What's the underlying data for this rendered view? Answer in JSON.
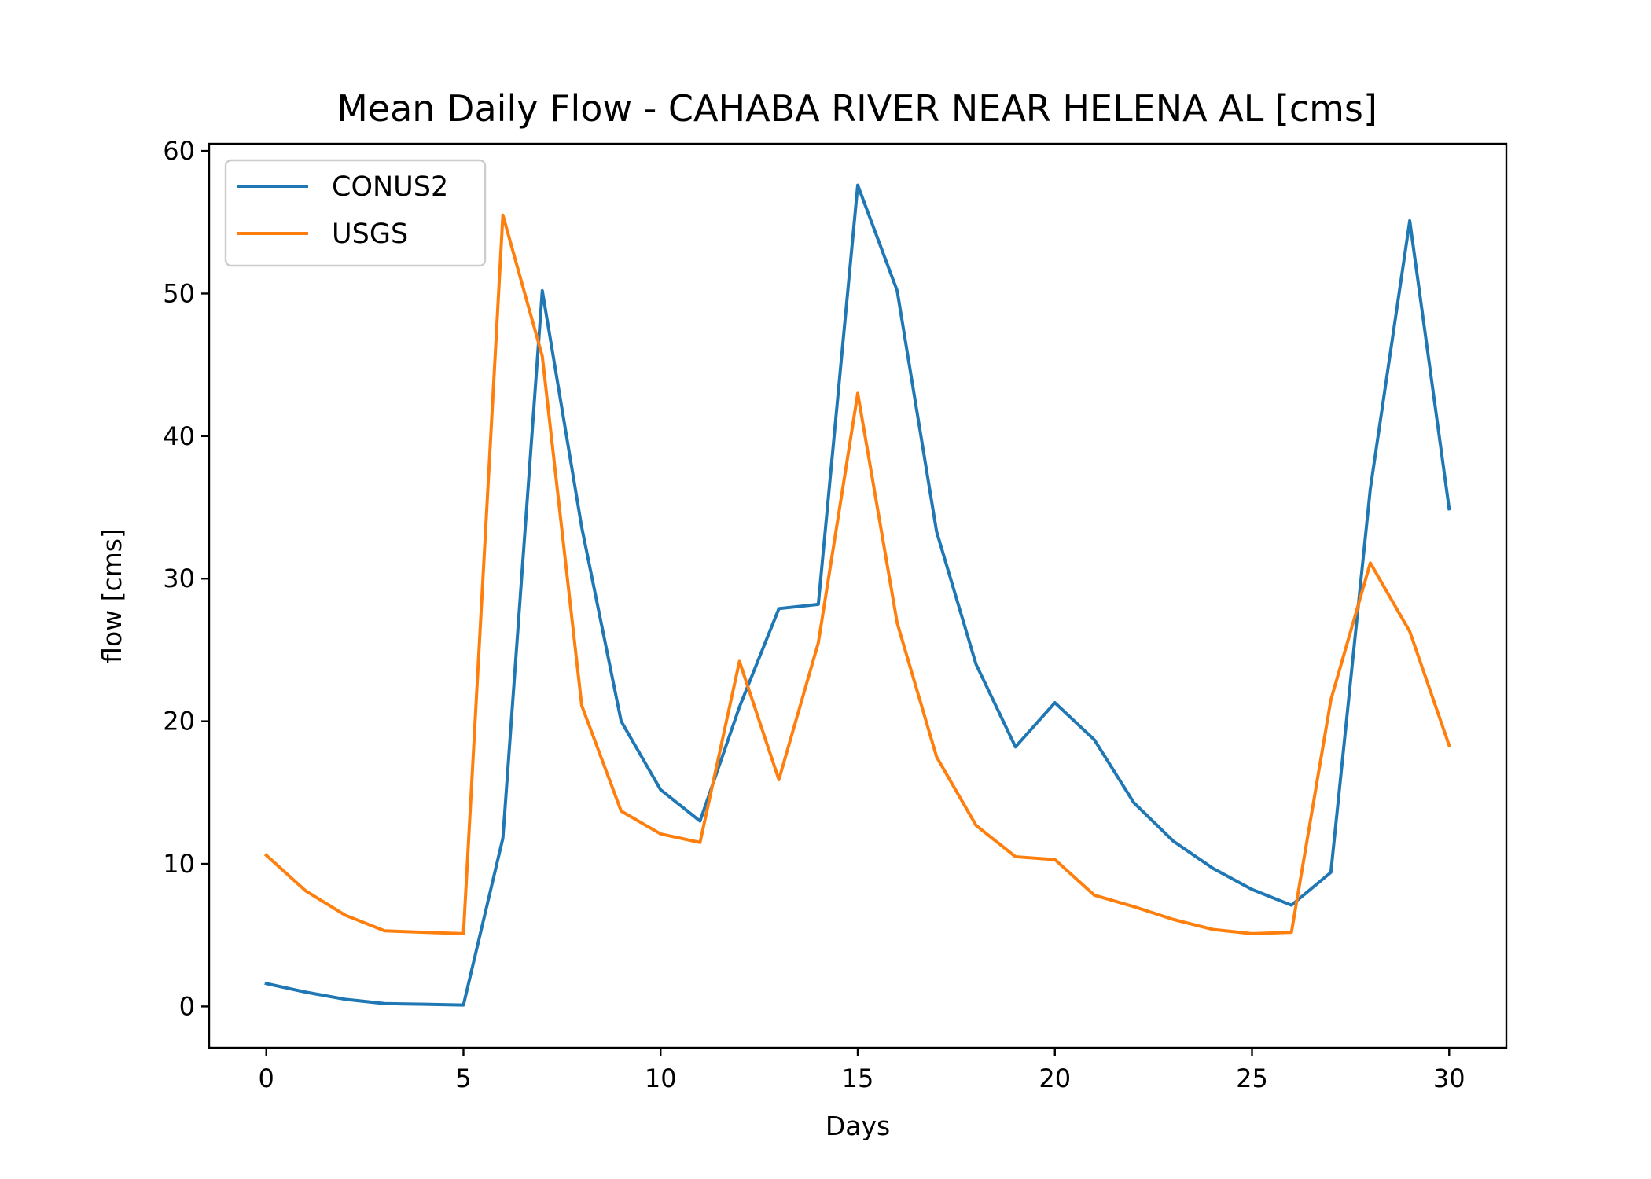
{
  "chart_data": {
    "type": "line",
    "title": "Mean Daily Flow - CAHABA RIVER NEAR HELENA AL [cms]",
    "xlabel": "Days",
    "ylabel": "flow [cms]",
    "xlim": [
      -1.45,
      31.45
    ],
    "ylim": [
      -2.9,
      60.5
    ],
    "xticks": [
      0,
      5,
      10,
      15,
      20,
      25,
      30
    ],
    "yticks": [
      0,
      10,
      20,
      30,
      40,
      50,
      60
    ],
    "grid": false,
    "legend_position": "top-left",
    "x": [
      0,
      1,
      2,
      3,
      4,
      5,
      6,
      7,
      8,
      9,
      10,
      11,
      12,
      13,
      14,
      15,
      16,
      17,
      18,
      19,
      20,
      21,
      22,
      23,
      24,
      25,
      26,
      27,
      28,
      29,
      30
    ],
    "series": [
      {
        "name": "CONUS2",
        "color": "#1f77b4",
        "values": [
          1.6,
          1.0,
          0.5,
          0.2,
          0.15,
          0.1,
          11.8,
          50.2,
          33.6,
          20.0,
          15.2,
          13.0,
          21.0,
          27.9,
          28.2,
          57.6,
          50.2,
          33.3,
          24.0,
          18.2,
          21.3,
          18.7,
          14.3,
          11.6,
          9.7,
          8.2,
          7.1,
          9.4,
          36.3,
          55.1,
          34.9
        ]
      },
      {
        "name": "USGS",
        "color": "#ff7f0e",
        "values": [
          10.6,
          8.1,
          6.4,
          5.3,
          5.2,
          5.1,
          55.5,
          45.6,
          21.1,
          13.7,
          12.1,
          11.5,
          24.2,
          15.9,
          25.5,
          43.0,
          26.9,
          17.5,
          12.7,
          10.5,
          10.3,
          7.8,
          7.0,
          6.1,
          5.4,
          5.1,
          5.2,
          21.5,
          31.1,
          26.3,
          18.3
        ]
      }
    ]
  }
}
